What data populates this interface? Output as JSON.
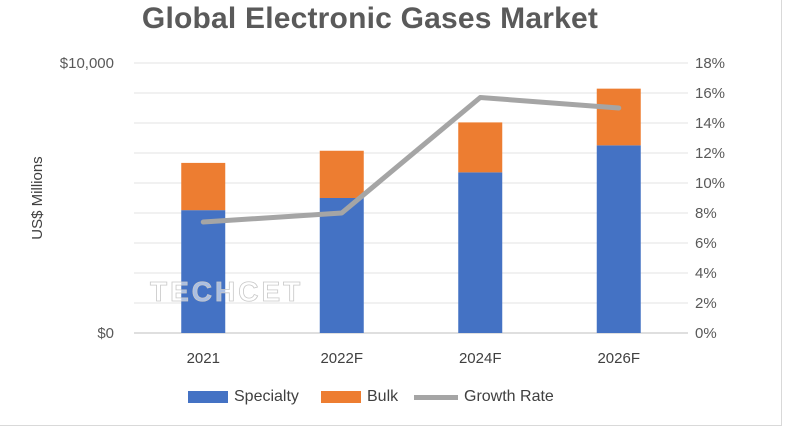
{
  "chart_data": {
    "type": "bar",
    "stacked": true,
    "title": "Global Electronic Gases Market",
    "ylabel": "US$ Millions",
    "xlabel": "",
    "categories": [
      "2021",
      "2022F",
      "2024F",
      "2026F"
    ],
    "series": [
      {
        "name": "Specialty",
        "type": "bar",
        "axis": "left",
        "color": "#4472c4",
        "values": [
          4550,
          5000,
          5950,
          6950
        ]
      },
      {
        "name": "Bulk",
        "type": "bar",
        "axis": "left",
        "color": "#ed7d31",
        "values": [
          1750,
          1750,
          1850,
          2100
        ]
      },
      {
        "name": "Growth Rate",
        "type": "line",
        "axis": "right",
        "color": "#a5a5a5",
        "values": [
          7.4,
          8.0,
          15.7,
          15.0
        ]
      }
    ],
    "y_left": {
      "ylim": [
        0,
        10000
      ],
      "ticks": [
        "$0",
        "$10,000"
      ],
      "tick_values": [
        0,
        10000
      ]
    },
    "y_right": {
      "ylim": [
        0,
        18
      ],
      "ticks": [
        "0%",
        "2%",
        "4%",
        "6%",
        "8%",
        "10%",
        "12%",
        "14%",
        "16%",
        "18%"
      ],
      "tick_values": [
        0,
        2,
        4,
        6,
        8,
        10,
        12,
        14,
        16,
        18
      ]
    },
    "grid": true,
    "legend_position": "bottom",
    "watermark": "TECHCET"
  }
}
